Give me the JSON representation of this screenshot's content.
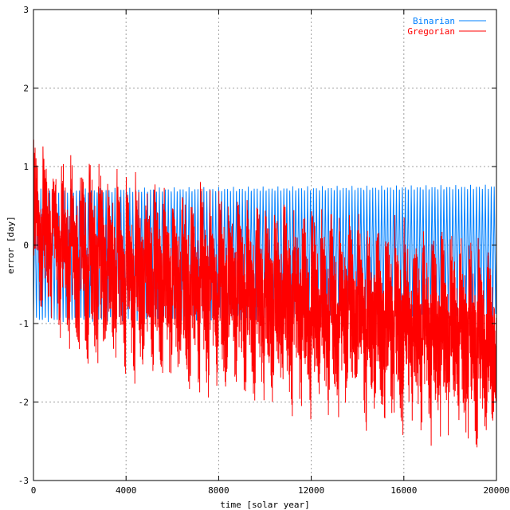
{
  "chart_data": {
    "type": "line",
    "title": "",
    "xlabel": "time [solar year]",
    "ylabel": "error [day]",
    "xlim": [
      0,
      20000
    ],
    "ylim": [
      -3,
      3
    ],
    "xticks": [
      0,
      4000,
      8000,
      12000,
      16000,
      20000
    ],
    "yticks": [
      -3,
      -2,
      -1,
      0,
      1,
      2,
      3
    ],
    "grid": true,
    "legend_position": "top-right",
    "series": [
      {
        "name": "Binarian",
        "color": "#0080ff",
        "pattern": "sawtooth oscillation, roughly 128-year period, bounded by envelopes",
        "envelope_x": [
          0,
          2000,
          4000,
          8000,
          12000,
          16000,
          20000
        ],
        "envelope_upper": [
          0.72,
          0.72,
          0.73,
          0.74,
          0.75,
          0.76,
          0.77
        ],
        "envelope_lower": [
          -0.98,
          -0.98,
          -0.97,
          -0.96,
          -0.95,
          -0.94,
          -0.93
        ]
      },
      {
        "name": "Gregorian",
        "color": "#ff0000",
        "pattern": "400-year cycle with ~4-year leap oscillation and long-term negative drift",
        "envelope_x": [
          0,
          2000,
          4000,
          6000,
          8000,
          10000,
          12000,
          14000,
          16000,
          18000,
          20000
        ],
        "envelope_upper": [
          1.4,
          1.2,
          1.15,
          0.9,
          0.9,
          0.8,
          0.65,
          0.55,
          0.4,
          0.3,
          0.25
        ],
        "envelope_lower": [
          -0.9,
          -1.6,
          -1.9,
          -2.0,
          -2.1,
          -2.2,
          -2.35,
          -2.4,
          -2.55,
          -2.65,
          -2.85
        ]
      }
    ]
  }
}
